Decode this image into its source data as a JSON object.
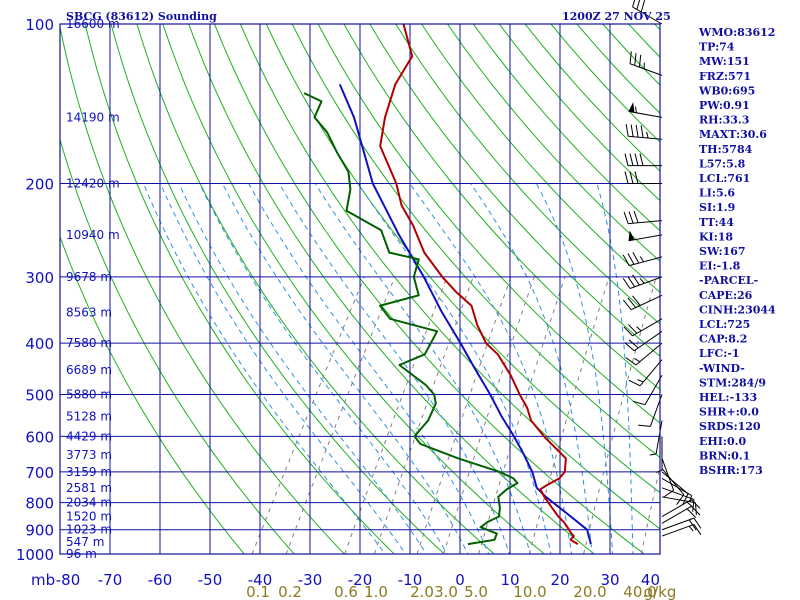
{
  "title_left": "SBCG (83612) Sounding",
  "title_right": "1200Z 27 NOV 25",
  "indices": [
    "WMO:83612",
    "TP:74",
    "MW:151",
    "FRZ:571",
    "WB0:695",
    "PW:0.91",
    "RH:33.3",
    "MAXT:30.6",
    "TH:5784",
    "L57:5.8",
    "LCL:761",
    "LI:5.6",
    "SI:1.9",
    "TT:44",
    "KI:18",
    "SW:167",
    "EI:-1.8",
    "-PARCEL-",
    "CAPE:26",
    "CINH:23044",
    "LCL:725",
    "CAP:8.2",
    "LFC:-1",
    "-WIND-",
    "STM:284/9",
    "HEL:-133",
    "SHR+:0.0",
    "SRDS:120",
    "EHI:0.0",
    "BRN:0.1",
    "BSHR:173"
  ],
  "colors": {
    "frame": "#1010a0",
    "isobar": "#1010a0",
    "isotherm": "#1010a0",
    "dry_adiabat": "#20b020",
    "moist_adiabat": "#3090e0",
    "mixing_ratio": "#808080",
    "temperature": "#b00000",
    "dewpoint": "#006000",
    "parcel": "#1010c0",
    "wind_barb": "#000000"
  },
  "chart_data": {
    "type": "skew-t",
    "xlabel_unit": "mb",
    "mixing_ratio_unit": "g/kg",
    "pressure_levels": [
      100,
      200,
      300,
      400,
      500,
      600,
      700,
      800,
      900,
      1000
    ],
    "pressure_tick_labels": [
      "100",
      "200",
      "300",
      "400",
      "500",
      "600",
      "700",
      "800",
      "900",
      "1000"
    ],
    "temperature_ticks": [
      -80,
      -70,
      -60,
      -50,
      -40,
      -30,
      -20,
      -10,
      0,
      10,
      20,
      30,
      40
    ],
    "temperature_tick_labels": [
      "-80",
      "-70",
      "-60",
      "-50",
      "-40",
      "-30",
      "-20",
      "-10",
      "0",
      "10",
      "20",
      "30",
      "40"
    ],
    "mixing_ratio_labels": [
      "0.1",
      "0.2",
      "0.6",
      "1.0",
      "2.0",
      "3.0",
      "5.0",
      "10.0",
      "20.0",
      "40.0"
    ],
    "altitude_labels": [
      {
        "p": 100,
        "label": "16600 m"
      },
      {
        "p": 150,
        "label": "14190 m"
      },
      {
        "p": 200,
        "label": "12420 m"
      },
      {
        "p": 250,
        "label": "10940 m"
      },
      {
        "p": 300,
        "label": "9678 m"
      },
      {
        "p": 350,
        "label": "8563 m"
      },
      {
        "p": 400,
        "label": "7580 m"
      },
      {
        "p": 450,
        "label": "6689 m"
      },
      {
        "p": 500,
        "label": "5880 m"
      },
      {
        "p": 550,
        "label": "5128 m"
      },
      {
        "p": 600,
        "label": "4429 m"
      },
      {
        "p": 650,
        "label": "3773 m"
      },
      {
        "p": 700,
        "label": "3159 m"
      },
      {
        "p": 750,
        "label": "2581 m"
      },
      {
        "p": 800,
        "label": "2034 m"
      },
      {
        "p": 850,
        "label": "1520 m"
      },
      {
        "p": 900,
        "label": "1023 m"
      },
      {
        "p": 950,
        "label": "547 m"
      },
      {
        "p": 1000,
        "label": "96 m"
      }
    ],
    "temperature": {
      "p": [
        958,
        940,
        925,
        910,
        895,
        870,
        850,
        820,
        780,
        755,
        740,
        720,
        700,
        660,
        620,
        600,
        560,
        530,
        500,
        460,
        420,
        400,
        370,
        340,
        320,
        300,
        270,
        240,
        220,
        200,
        170,
        150,
        130,
        115,
        100
      ],
      "t": [
        22.4,
        20.4,
        20.6,
        19.5,
        18.6,
        16.9,
        15.2,
        13.0,
        10.0,
        8.3,
        9.2,
        10.8,
        11.1,
        9.7,
        5.1,
        2.7,
        -1.8,
        -4.1,
        -7.2,
        -11.3,
        -16.4,
        -20.1,
        -24.0,
        -27.5,
        -32.3,
        -36.8,
        -43.3,
        -48.8,
        -53.5,
        -57.2,
        -64.9,
        -67.4,
        -69.3,
        -69.3,
        -74.9
      ]
    },
    "dewpoint": {
      "p": [
        958,
        940,
        915,
        890,
        870,
        850,
        820,
        780,
        755,
        735,
        720,
        700,
        660,
        620,
        600,
        560,
        520,
        500,
        480,
        440,
        420,
        380,
        360,
        340,
        325,
        300,
        278,
        270,
        245,
        225,
        205,
        190,
        175,
        160,
        150,
        140,
        135
      ],
      "t": [
        0.4,
        5.2,
        4.9,
        0.9,
        1.7,
        3.3,
        2.5,
        0.8,
        1.6,
        3.0,
        1.6,
        -1.9,
        -11.8,
        -21.1,
        -23.2,
        -22.4,
        -22.9,
        -24.3,
        -27.1,
        -34.8,
        -31.0,
        -31.3,
        -42.2,
        -45.8,
        -39.3,
        -42.5,
        -43.6,
        -50.3,
        -54.6,
        -63.9,
        -65.7,
        -68.2,
        -72.7,
        -77.2,
        -81.5,
        -82.0,
        -86.5
      ]
    },
    "parcel": {
      "p": [
        958,
        900,
        850,
        780,
        750,
        700,
        650,
        600,
        550,
        500,
        450,
        400,
        350,
        300,
        250,
        200,
        150,
        130
      ],
      "t": [
        25.0,
        22.5,
        17.7,
        10.3,
        7.4,
        4.6,
        0.9,
        -3.3,
        -8.2,
        -13.1,
        -18.9,
        -25.2,
        -32.6,
        -40.5,
        -50.5,
        -61.9,
        -73.6,
        -80.4
      ]
    },
    "wind_barbs": [
      {
        "p": 100,
        "dir": 300,
        "spd": 30
      },
      {
        "p": 125,
        "dir": 290,
        "spd": 35
      },
      {
        "p": 150,
        "dir": 280,
        "spd": 55
      },
      {
        "p": 165,
        "dir": 275,
        "spd": 45
      },
      {
        "p": 185,
        "dir": 270,
        "spd": 40
      },
      {
        "p": 200,
        "dir": 270,
        "spd": 30
      },
      {
        "p": 235,
        "dir": 265,
        "spd": 30
      },
      {
        "p": 250,
        "dir": 260,
        "spd": 50
      },
      {
        "p": 275,
        "dir": 255,
        "spd": 35
      },
      {
        "p": 300,
        "dir": 250,
        "spd": 35
      },
      {
        "p": 325,
        "dir": 245,
        "spd": 30
      },
      {
        "p": 360,
        "dir": 240,
        "spd": 25
      },
      {
        "p": 380,
        "dir": 235,
        "spd": 20
      },
      {
        "p": 400,
        "dir": 230,
        "spd": 15
      },
      {
        "p": 430,
        "dir": 220,
        "spd": 15
      },
      {
        "p": 460,
        "dir": 210,
        "spd": 10
      },
      {
        "p": 500,
        "dir": 200,
        "spd": 10
      },
      {
        "p": 560,
        "dir": 190,
        "spd": 5
      },
      {
        "p": 600,
        "dir": 180,
        "spd": 5
      },
      {
        "p": 660,
        "dir": 160,
        "spd": 10
      },
      {
        "p": 690,
        "dir": 140,
        "spd": 10
      },
      {
        "p": 700,
        "dir": 130,
        "spd": 10
      },
      {
        "p": 720,
        "dir": 120,
        "spd": 5
      },
      {
        "p": 750,
        "dir": 110,
        "spd": 10
      },
      {
        "p": 780,
        "dir": 100,
        "spd": 10
      },
      {
        "p": 850,
        "dir": 60,
        "spd": 15
      },
      {
        "p": 875,
        "dir": 60,
        "spd": 20
      },
      {
        "p": 900,
        "dir": 70,
        "spd": 20
      },
      {
        "p": 925,
        "dir": 70,
        "spd": 15
      }
    ]
  }
}
